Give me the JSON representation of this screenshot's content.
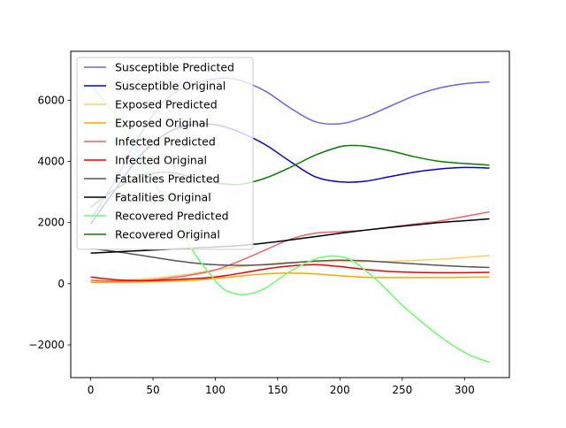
{
  "chart_data": {
    "type": "line",
    "title": "",
    "xlabel": "",
    "ylabel": "",
    "xlim": [
      -16,
      336
    ],
    "ylim": [
      -3070,
      7600
    ],
    "xticks": [
      0,
      50,
      100,
      150,
      200,
      250,
      300
    ],
    "yticks": [
      -2000,
      0,
      2000,
      4000,
      6000
    ],
    "grid": false,
    "legend_position": "upper-left",
    "series": [
      {
        "name": "Susceptible Predicted",
        "color": "#6464f0",
        "x": [
          0,
          20,
          40,
          60,
          80,
          100,
          110,
          120,
          140,
          160,
          180,
          200,
          220,
          240,
          260,
          280,
          300,
          320
        ],
        "y": [
          2100,
          3400,
          4900,
          6000,
          6500,
          6700,
          6720,
          6650,
          6300,
          5750,
          5300,
          5230,
          5450,
          5800,
          6150,
          6400,
          6540,
          6600
        ]
      },
      {
        "name": "Susceptible Original",
        "color": "#0000dd",
        "x": [
          0,
          20,
          40,
          60,
          80,
          100,
          120,
          140,
          160,
          180,
          200,
          220,
          240,
          260,
          280,
          300,
          320
        ],
        "y": [
          1950,
          3100,
          4200,
          4900,
          5200,
          5200,
          4950,
          4550,
          4000,
          3500,
          3330,
          3350,
          3500,
          3650,
          3750,
          3800,
          3780
        ]
      },
      {
        "name": "Exposed Predicted",
        "color": "#ffcc66",
        "x": [
          0,
          20,
          40,
          60,
          80,
          100,
          120,
          140,
          160,
          180,
          200,
          220,
          240,
          260,
          280,
          300,
          320
        ],
        "y": [
          50,
          100,
          150,
          220,
          320,
          450,
          560,
          640,
          700,
          720,
          730,
          720,
          730,
          760,
          800,
          860,
          920
        ]
      },
      {
        "name": "Exposed Original",
        "color": "#ffa500",
        "x": [
          0,
          20,
          40,
          60,
          80,
          100,
          120,
          140,
          160,
          180,
          200,
          220,
          240,
          260,
          280,
          300,
          320
        ],
        "y": [
          40,
          50,
          60,
          80,
          110,
          170,
          250,
          320,
          350,
          320,
          260,
          210,
          200,
          200,
          200,
          210,
          220
        ]
      },
      {
        "name": "Infected Predicted",
        "color": "#f06464",
        "x": [
          0,
          20,
          40,
          60,
          80,
          100,
          120,
          140,
          160,
          180,
          200,
          220,
          240,
          260,
          280,
          300,
          320
        ],
        "y": [
          110,
          90,
          100,
          170,
          280,
          450,
          750,
          1100,
          1450,
          1650,
          1700,
          1750,
          1850,
          1950,
          2050,
          2200,
          2350
        ]
      },
      {
        "name": "Infected Original",
        "color": "#ee0000",
        "x": [
          0,
          20,
          40,
          60,
          80,
          100,
          120,
          140,
          160,
          180,
          200,
          220,
          240,
          260,
          280,
          300,
          320
        ],
        "y": [
          220,
          130,
          100,
          120,
          160,
          220,
          340,
          480,
          580,
          620,
          560,
          470,
          400,
          370,
          360,
          360,
          370
        ]
      },
      {
        "name": "Fatalities Predicted",
        "color": "#555555",
        "x": [
          0,
          20,
          40,
          60,
          80,
          100,
          120,
          140,
          160,
          180,
          200,
          220,
          240,
          260,
          280,
          300,
          320
        ],
        "y": [
          1150,
          1050,
          930,
          800,
          690,
          620,
          600,
          620,
          680,
          740,
          770,
          750,
          700,
          650,
          600,
          560,
          530
        ]
      },
      {
        "name": "Fatalities Original",
        "color": "#000000",
        "x": [
          0,
          20,
          40,
          60,
          80,
          100,
          120,
          140,
          160,
          180,
          200,
          220,
          240,
          260,
          280,
          300,
          320
        ],
        "y": [
          1000,
          1040,
          1080,
          1120,
          1160,
          1200,
          1250,
          1330,
          1430,
          1540,
          1650,
          1750,
          1840,
          1920,
          2000,
          2060,
          2120
        ]
      },
      {
        "name": "Recovered Predicted",
        "color": "#66ff66",
        "x": [
          0,
          20,
          40,
          60,
          80,
          100,
          110,
          125,
          140,
          160,
          180,
          195,
          210,
          230,
          250,
          270,
          290,
          305,
          320
        ],
        "y": [
          6500,
          5500,
          4100,
          2700,
          1200,
          100,
          -250,
          -350,
          -150,
          400,
          800,
          900,
          750,
          100,
          -700,
          -1400,
          -2000,
          -2350,
          -2570
        ]
      },
      {
        "name": "Recovered Original",
        "color": "#008000",
        "x": [
          0,
          20,
          40,
          60,
          80,
          100,
          120,
          140,
          160,
          180,
          200,
          210,
          220,
          240,
          260,
          280,
          300,
          320
        ],
        "y": [
          2500,
          3100,
          3500,
          3650,
          3500,
          3300,
          3250,
          3450,
          3800,
          4200,
          4480,
          4520,
          4500,
          4350,
          4150,
          4000,
          3930,
          3880
        ]
      }
    ]
  }
}
